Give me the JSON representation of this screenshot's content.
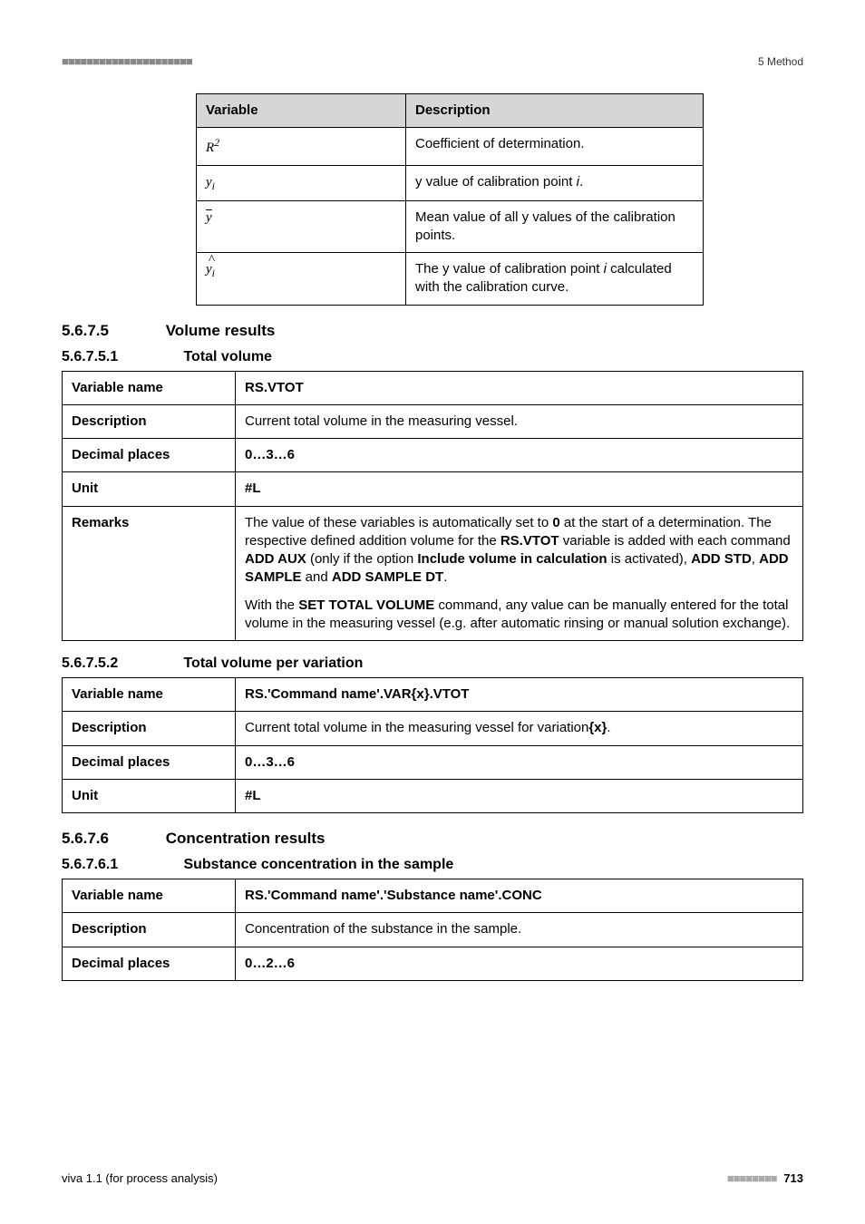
{
  "header": {
    "left": "■■■■■■■■■■■■■■■■■■■■■",
    "right": "5 Method"
  },
  "var_table": {
    "head_var": "Variable",
    "head_desc": "Description",
    "rows": [
      {
        "var_html": "R<sup>2</sup>",
        "desc": "Coefficient of determination."
      },
      {
        "var_html": "y<sub>i</sub>",
        "desc_html": "y value of calibration point <i class='it'>i</i>."
      },
      {
        "var_html": "<span class='overline'>y</span>",
        "desc": "Mean value of all y values of the calibration points."
      },
      {
        "var_html": "<span class='hat'>y</span><sub>i</sub>",
        "desc_html": "The y value of calibration point <i class='it'>i</i> calculated with the calibration curve."
      }
    ]
  },
  "sec_5_6_7_5": {
    "num": "5.6.7.5",
    "title": "Volume results"
  },
  "sec_5_6_7_5_1": {
    "num": "5.6.7.5.1",
    "title": "Total volume"
  },
  "total_volume": {
    "varname_label": "Variable name",
    "varname": "RS.VTOT",
    "desc_label": "Description",
    "desc": "Current total volume in the measuring vessel.",
    "dec_label": "Decimal places",
    "dec": "0…3…6",
    "unit_label": "Unit",
    "unit": "#L",
    "remarks_label": "Remarks",
    "remarks_p1_html": "The value of these variables is automatically set to <b>0</b> at the start of a determination. The respective defined addition volume for the <b>RS.VTOT</b> variable is added with each command <b>ADD AUX</b> (only if the option <b>Include volume in calculation</b> is activated), <b>ADD STD</b>, <b>ADD SAMPLE</b> and <b>ADD SAMPLE DT</b>.",
    "remarks_p2_html": "With the <b>SET TOTAL VOLUME</b> command, any value can be manually entered for the total volume in the measuring vessel (e.g. after automatic rinsing or manual solution exchange)."
  },
  "sec_5_6_7_5_2": {
    "num": "5.6.7.5.2",
    "title": "Total volume per variation"
  },
  "total_volume_var": {
    "varname_label": "Variable name",
    "varname": "RS.'Command name'.VAR{x}.VTOT",
    "desc_label": "Description",
    "desc_html": "Current total volume in the measuring vessel for variation<b>{x}</b>.",
    "dec_label": "Decimal places",
    "dec": "0…3…6",
    "unit_label": "Unit",
    "unit": "#L"
  },
  "sec_5_6_7_6": {
    "num": "5.6.7.6",
    "title": "Concentration results"
  },
  "sec_5_6_7_6_1": {
    "num": "5.6.7.6.1",
    "title": "Substance concentration in the sample"
  },
  "conc": {
    "varname_label": "Variable name",
    "varname": "RS.'Command name'.'Substance name'.CONC",
    "desc_label": "Description",
    "desc": "Concentration of the substance in the sample.",
    "dec_label": "Decimal places",
    "dec": "0…2…6"
  },
  "footer": {
    "left": "viva 1.1 (for process analysis)",
    "dashes": "■■■■■■■■",
    "page": "713"
  }
}
